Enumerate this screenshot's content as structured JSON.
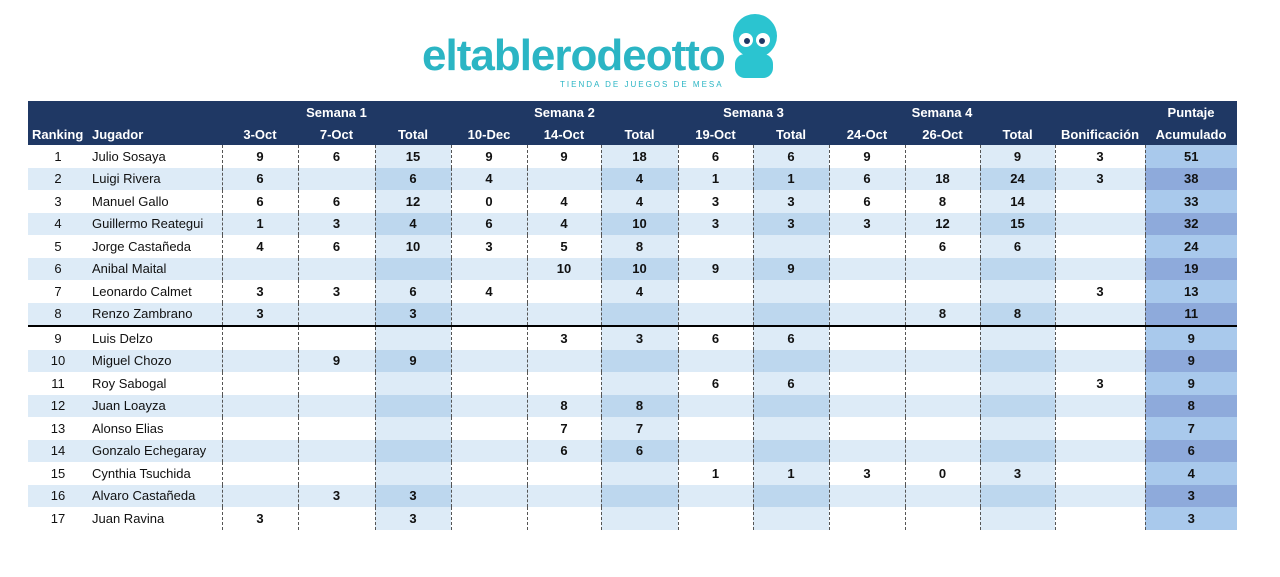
{
  "logo": {
    "brand": "eltablerodeotto",
    "tagline": "TIENDA DE JUEGOS DE MESA"
  },
  "table": {
    "groups": [
      "Semana 1",
      "Semana 2",
      "Semana 3",
      "Semana 4"
    ],
    "top_right": "Puntaje",
    "columns": [
      "Ranking",
      "Jugador",
      "3-Oct",
      "7-Oct",
      "Total",
      "10-Dec",
      "14-Oct",
      "Total",
      "19-Oct",
      "Total",
      "24-Oct",
      "26-Oct",
      "Total",
      "Bonificación",
      "Acumulado"
    ],
    "rows": [
      [
        1,
        "Julio Sosaya",
        9,
        6,
        15,
        9,
        9,
        18,
        6,
        6,
        9,
        null,
        9,
        3,
        51
      ],
      [
        2,
        "Luigi Rivera",
        6,
        null,
        6,
        4,
        null,
        4,
        1,
        1,
        6,
        18,
        24,
        3,
        38
      ],
      [
        3,
        "Manuel Gallo",
        6,
        6,
        12,
        0,
        4,
        4,
        3,
        3,
        6,
        8,
        14,
        null,
        33
      ],
      [
        4,
        "Guillermo Reategui",
        1,
        3,
        4,
        6,
        4,
        10,
        3,
        3,
        3,
        12,
        15,
        null,
        32
      ],
      [
        5,
        "Jorge Castañeda",
        4,
        6,
        10,
        3,
        5,
        8,
        null,
        null,
        null,
        6,
        6,
        null,
        24
      ],
      [
        6,
        "Anibal Maital",
        null,
        null,
        null,
        null,
        10,
        10,
        9,
        9,
        null,
        null,
        null,
        null,
        19
      ],
      [
        7,
        "Leonardo Calmet",
        3,
        3,
        6,
        4,
        null,
        4,
        null,
        null,
        null,
        null,
        null,
        3,
        13
      ],
      [
        8,
        "Renzo Zambrano",
        3,
        null,
        3,
        null,
        null,
        null,
        null,
        null,
        null,
        8,
        8,
        null,
        11
      ],
      [
        9,
        "Luis Delzo",
        null,
        null,
        null,
        null,
        3,
        3,
        6,
        6,
        null,
        null,
        null,
        null,
        9
      ],
      [
        10,
        "Miguel Chozo",
        null,
        9,
        9,
        null,
        null,
        null,
        null,
        null,
        null,
        null,
        null,
        null,
        9
      ],
      [
        11,
        "Roy Sabogal",
        null,
        null,
        null,
        null,
        null,
        null,
        6,
        6,
        null,
        null,
        null,
        3,
        9
      ],
      [
        12,
        "Juan Loayza",
        null,
        null,
        null,
        null,
        8,
        8,
        null,
        null,
        null,
        null,
        null,
        null,
        8
      ],
      [
        13,
        "Alonso Elias",
        null,
        null,
        null,
        null,
        7,
        7,
        null,
        null,
        null,
        null,
        null,
        null,
        7
      ],
      [
        14,
        "Gonzalo Echegaray",
        null,
        null,
        null,
        null,
        6,
        6,
        null,
        null,
        null,
        null,
        null,
        null,
        6
      ],
      [
        15,
        "Cynthia Tsuchida",
        null,
        null,
        null,
        null,
        null,
        null,
        1,
        1,
        3,
        0,
        3,
        null,
        4
      ],
      [
        16,
        "Alvaro Castañeda",
        null,
        3,
        3,
        null,
        null,
        null,
        null,
        null,
        null,
        null,
        null,
        null,
        3
      ],
      [
        17,
        "Juan Ravina",
        3,
        null,
        3,
        null,
        null,
        null,
        null,
        null,
        null,
        null,
        null,
        null,
        3
      ]
    ]
  }
}
